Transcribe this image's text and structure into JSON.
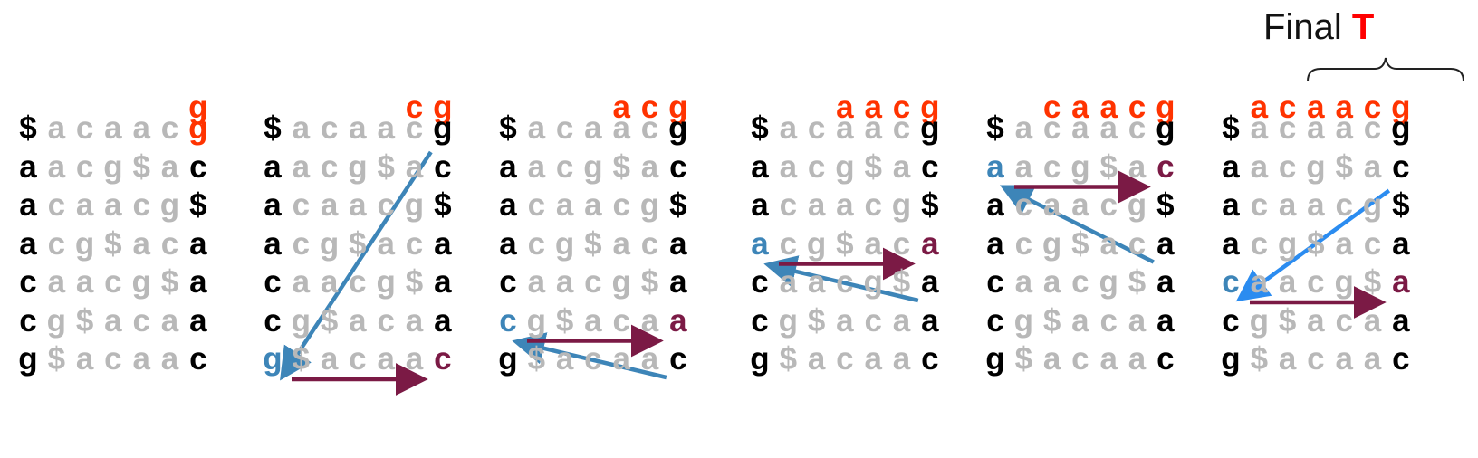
{
  "final_label": {
    "text": "Final",
    "symbol": "T"
  },
  "rows_template": [
    "$acaacg",
    "aacg$ac",
    "acaacg$",
    "acg$aca",
    "caacg$a",
    "cg$acaa",
    "g$acaac"
  ],
  "panels": [
    {
      "header": "g",
      "highlight_last_red": true,
      "blue_first": [],
      "red_last": []
    },
    {
      "header": "cg",
      "highlight_last_red": false,
      "blue_first": [
        6
      ],
      "red_last": [
        6
      ]
    },
    {
      "header": "acg",
      "highlight_last_red": false,
      "blue_first": [
        5
      ],
      "red_last": [
        5
      ]
    },
    {
      "header": "aacg",
      "highlight_last_red": false,
      "blue_first": [
        3
      ],
      "red_last": [
        3
      ]
    },
    {
      "header": "caacg",
      "highlight_last_red": false,
      "blue_first": [
        1
      ],
      "red_last": [
        1
      ]
    },
    {
      "header": "acaacg",
      "highlight_last_red": false,
      "blue_first": [
        4
      ],
      "red_last": [
        4
      ]
    }
  ],
  "arrows": [
    {
      "panel": 1,
      "from_row": 0,
      "to_row": 6,
      "blue": "#3d85b8"
    },
    {
      "panel": 2,
      "from_row": 6,
      "to_row": 5,
      "blue": "#3d85b8"
    },
    {
      "panel": 3,
      "from_row": 4,
      "to_row": 3,
      "blue": "#3d85b8"
    },
    {
      "panel": 4,
      "from_row": 3,
      "to_row": 1,
      "blue": "#3d85b8"
    },
    {
      "panel": 5,
      "from_row": 1,
      "to_row": 4,
      "blue": "#2b8cf0"
    }
  ],
  "colors": {
    "header": "#ff3300",
    "dim": "#b8b8b8",
    "blue": "#3d85b8",
    "maroon": "#7b1a45"
  }
}
